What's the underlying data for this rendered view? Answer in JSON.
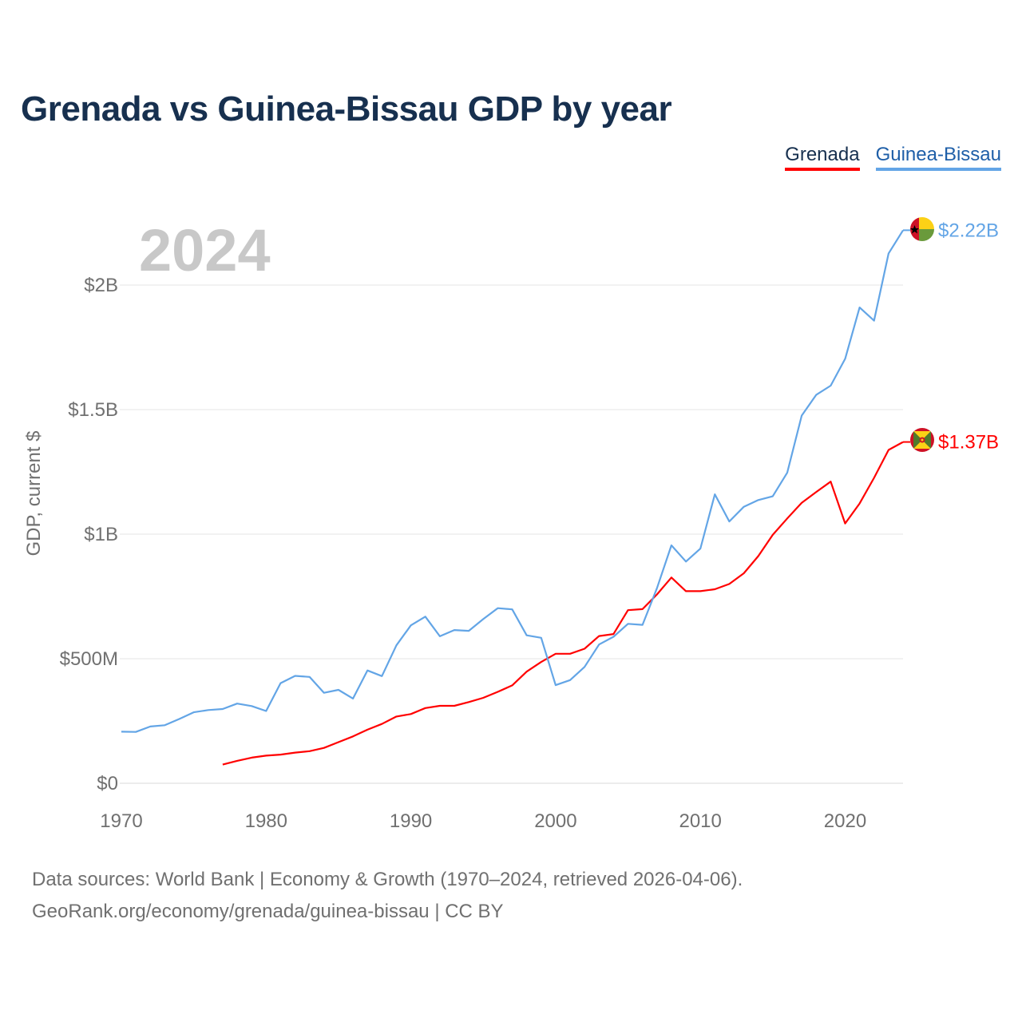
{
  "title": "Grenada vs Guinea-Bissau GDP by year",
  "legend": [
    {
      "name": "Grenada",
      "color": "#ff0000"
    },
    {
      "name": "Guinea-Bissau",
      "color": "#63a5e6"
    }
  ],
  "year_watermark": "2024",
  "footer": {
    "line1": "Data sources: World Bank | Economy & Growth (1970–2024, retrieved 2026-04-06).",
    "line2": "GeoRank.org/economy/grenada/guinea-bissau | CC BY"
  },
  "chart_data": {
    "type": "line",
    "title": "Grenada vs Guinea-Bissau GDP by year",
    "xlabel": "",
    "ylabel": "GDP, current $",
    "xlim": [
      1970,
      2024
    ],
    "ylim": [
      0,
      2250000000
    ],
    "x_ticks": [
      {
        "value": 1970,
        "label": "1970"
      },
      {
        "value": 1980,
        "label": "1980"
      },
      {
        "value": 1990,
        "label": "1990"
      },
      {
        "value": 2000,
        "label": "2000"
      },
      {
        "value": 2010,
        "label": "2010"
      },
      {
        "value": 2020,
        "label": "2020"
      }
    ],
    "y_ticks": [
      {
        "value": 0,
        "label": "$0"
      },
      {
        "value": 500000000,
        "label": "$500M"
      },
      {
        "value": 1000000000,
        "label": "$1B"
      },
      {
        "value": 1500000000,
        "label": "$1.5B"
      },
      {
        "value": 2000000000,
        "label": "$2B"
      }
    ],
    "grid": true,
    "legend_position": "top-right",
    "series": [
      {
        "name": "Grenada",
        "color": "#ff0000",
        "end_label": "$1.37B",
        "flag": "grenada-flag",
        "x": [
          1977,
          1978,
          1979,
          1980,
          1981,
          1982,
          1983,
          1984,
          1985,
          1986,
          1987,
          1988,
          1989,
          1990,
          1991,
          1992,
          1993,
          1994,
          1995,
          1996,
          1997,
          1998,
          1999,
          2000,
          2001,
          2002,
          2003,
          2004,
          2005,
          2006,
          2007,
          2008,
          2009,
          2010,
          2011,
          2012,
          2013,
          2014,
          2015,
          2016,
          2017,
          2018,
          2019,
          2020,
          2021,
          2022,
          2023,
          2024
        ],
        "values": [
          75000000,
          90000000,
          103000000,
          111000000,
          115000000,
          123000000,
          129000000,
          142000000,
          165000000,
          188000000,
          215000000,
          238000000,
          268000000,
          278000000,
          302000000,
          311000000,
          311000000,
          326000000,
          343000000,
          367000000,
          393000000,
          448000000,
          487000000,
          520000000,
          520000000,
          540000000,
          591000000,
          599000000,
          695000000,
          699000000,
          758000000,
          826000000,
          771000000,
          771000000,
          779000000,
          800000000,
          843000000,
          912000000,
          997000000,
          1063000000,
          1126000000,
          1169000000,
          1211000000,
          1043000000,
          1123000000,
          1226000000,
          1338000000,
          1370000000
        ]
      },
      {
        "name": "Guinea-Bissau",
        "color": "#63a5e6",
        "end_label": "$2.22B",
        "flag": "guinea-bissau-flag",
        "x": [
          1970,
          1971,
          1972,
          1973,
          1974,
          1975,
          1976,
          1977,
          1978,
          1979,
          1980,
          1981,
          1982,
          1983,
          1984,
          1985,
          1986,
          1987,
          1988,
          1989,
          1990,
          1991,
          1992,
          1993,
          1994,
          1995,
          1996,
          1997,
          1998,
          1999,
          2000,
          2001,
          2002,
          2003,
          2004,
          2005,
          2006,
          2007,
          2008,
          2009,
          2010,
          2011,
          2012,
          2013,
          2014,
          2015,
          2016,
          2017,
          2018,
          2019,
          2020,
          2021,
          2022,
          2023,
          2024
        ],
        "values": [
          207000000,
          206000000,
          228000000,
          233000000,
          258000000,
          285000000,
          294000000,
          298000000,
          320000000,
          310000000,
          290000000,
          402000000,
          431000000,
          427000000,
          363000000,
          375000000,
          340000000,
          453000000,
          430000000,
          554000000,
          634000000,
          669000000,
          590000000,
          615000000,
          612000000,
          659000000,
          703000000,
          698000000,
          594000000,
          584000000,
          394000000,
          414000000,
          467000000,
          557000000,
          588000000,
          640000000,
          636000000,
          783000000,
          955000000,
          890000000,
          942000000,
          1160000000,
          1051000000,
          1110000000,
          1137000000,
          1152000000,
          1247000000,
          1476000000,
          1559000000,
          1596000000,
          1704000000,
          1910000000,
          1857000000,
          2127000000,
          2220000000
        ]
      }
    ]
  }
}
